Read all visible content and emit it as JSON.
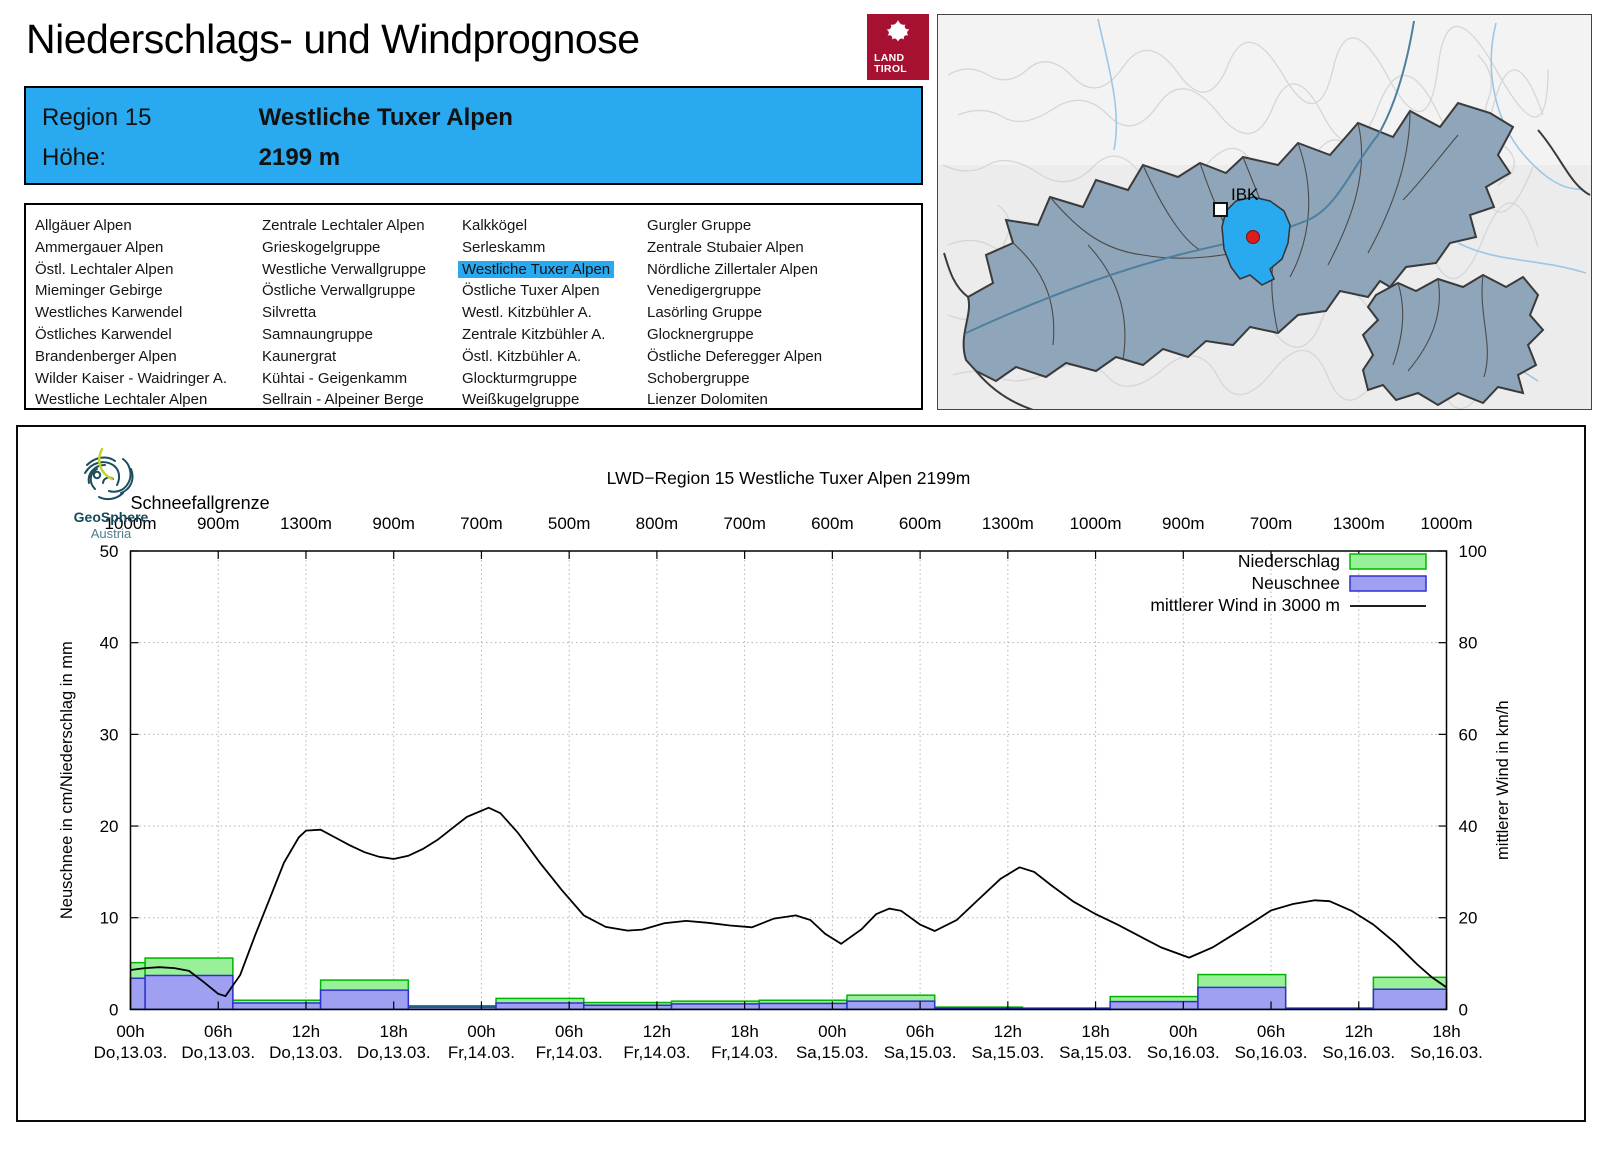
{
  "header": {
    "title": "Niederschlags- und Windprognose",
    "logo_line1": "LAND",
    "logo_line2": "TIROL"
  },
  "region_info": {
    "region_label": "Region 15",
    "region_name": "Westliche Tuxer Alpen",
    "elevation_label": "Höhe:",
    "elevation_value": "2199 m"
  },
  "region_list": {
    "selected": "Westliche Tuxer Alpen",
    "columns": [
      [
        "Allgäuer Alpen",
        "Ammergauer Alpen",
        "Östl. Lechtaler Alpen",
        "Mieminger Gebirge",
        "Westliches Karwendel",
        "Östliches Karwendel",
        "Brandenberger Alpen",
        "Wilder Kaiser - Waidringer A.",
        "Westliche Lechtaler Alpen"
      ],
      [
        "Zentrale Lechtaler Alpen",
        "Grieskogelgruppe",
        "Westliche Verwallgruppe",
        "Östliche Verwallgruppe",
        "Silvretta",
        "Samnaungruppe",
        "Kaunergrat",
        "Kühtai - Geigenkamm",
        "Sellrain - Alpeiner Berge"
      ],
      [
        "Kalkkögel",
        "Serleskamm",
        "Westliche Tuxer Alpen",
        "Östliche Tuxer Alpen",
        "Westl. Kitzbühler A.",
        "Zentrale Kitzbühler A.",
        "Östl. Kitzbühler A.",
        "Glockturmgruppe",
        "Weißkugelgruppe"
      ],
      [
        "Gurgler Gruppe",
        "Zentrale Stubaier Alpen",
        "Nördliche Zillertaler Alpen",
        "Venedigergruppe",
        "Lasörling Gruppe",
        "Glocknergruppe",
        "Östliche Deferegger Alpen",
        "Schobergruppe",
        "Lienzer Dolomiten"
      ]
    ]
  },
  "map": {
    "city_label": "IBK"
  },
  "geosphere": {
    "name": "GeoSphere",
    "country": "Austria"
  },
  "colors": {
    "accent_blue": "#29a9ef",
    "land_tirol_red": "#a61132",
    "map_region_fill": "#8fa5ba",
    "map_highlight": "#29a9ef",
    "location_dot_red": "#dd1c1c"
  },
  "chart_data": {
    "type": "bar+line",
    "title": "LWD−Region 15 Westliche Tuxer Alpen 2199m",
    "snowline_label": "Schneefallgrenze",
    "snowline_values": [
      "1000m",
      "900m",
      "1300m",
      "900m",
      "700m",
      "500m",
      "800m",
      "700m",
      "600m",
      "600m",
      "1300m",
      "1000m",
      "900m",
      "700m",
      "1300m",
      "1000m"
    ],
    "ylabel_left": "Neuschnee in cm/Niederschlag in mm",
    "ylabel_right": "mittlerer Wind in km/h",
    "ylim_left": [
      0,
      50
    ],
    "ylim_right": [
      0,
      100
    ],
    "yticks_left": [
      0,
      10,
      20,
      30,
      40,
      50
    ],
    "yticks_right": [
      0,
      20,
      40,
      60,
      80,
      100
    ],
    "x_hours_total": 90,
    "x_tick_step_h": 6,
    "grid": true,
    "legend_position": "top-right",
    "legend": [
      "Niederschlag",
      "Neuschnee",
      "mittlerer Wind in 3000 m"
    ],
    "x_ticks": [
      {
        "time": "00h",
        "date": "Do,13.03."
      },
      {
        "time": "06h",
        "date": "Do,13.03."
      },
      {
        "time": "12h",
        "date": "Do,13.03."
      },
      {
        "time": "18h",
        "date": "Do,13.03."
      },
      {
        "time": "00h",
        "date": "Fr,14.03."
      },
      {
        "time": "06h",
        "date": "Fr,14.03."
      },
      {
        "time": "12h",
        "date": "Fr,14.03."
      },
      {
        "time": "18h",
        "date": "Fr,14.03."
      },
      {
        "time": "00h",
        "date": "Sa,15.03."
      },
      {
        "time": "06h",
        "date": "Sa,15.03."
      },
      {
        "time": "12h",
        "date": "Sa,15.03."
      },
      {
        "time": "18h",
        "date": "Sa,15.03."
      },
      {
        "time": "00h",
        "date": "So,16.03."
      },
      {
        "time": "06h",
        "date": "So,16.03."
      },
      {
        "time": "12h",
        "date": "So,16.03."
      },
      {
        "time": "18h",
        "date": "So,16.03."
      }
    ],
    "bars": [
      {
        "start_h": 0,
        "end_h": 1,
        "niederschlag_mm": 5.1,
        "neuschnee_cm": 3.4
      },
      {
        "start_h": 1,
        "end_h": 7,
        "niederschlag_mm": 5.6,
        "neuschnee_cm": 3.7
      },
      {
        "start_h": 7,
        "end_h": 13,
        "niederschlag_mm": 1.0,
        "neuschnee_cm": 0.7
      },
      {
        "start_h": 13,
        "end_h": 19,
        "niederschlag_mm": 3.2,
        "neuschnee_cm": 2.1
      },
      {
        "start_h": 19,
        "end_h": 25,
        "niederschlag_mm": 0.4,
        "neuschnee_cm": 0.25
      },
      {
        "start_h": 25,
        "end_h": 31,
        "niederschlag_mm": 1.2,
        "neuschnee_cm": 0.7
      },
      {
        "start_h": 31,
        "end_h": 37,
        "niederschlag_mm": 0.75,
        "neuschnee_cm": 0.45
      },
      {
        "start_h": 37,
        "end_h": 43,
        "niederschlag_mm": 0.9,
        "neuschnee_cm": 0.6
      },
      {
        "start_h": 43,
        "end_h": 49,
        "niederschlag_mm": 1.0,
        "neuschnee_cm": 0.65
      },
      {
        "start_h": 49,
        "end_h": 55,
        "niederschlag_mm": 1.55,
        "neuschnee_cm": 0.9
      },
      {
        "start_h": 55,
        "end_h": 61,
        "niederschlag_mm": 0.25,
        "neuschnee_cm": 0.15
      },
      {
        "start_h": 61,
        "end_h": 67,
        "niederschlag_mm": 0.15,
        "neuschnee_cm": 0.1
      },
      {
        "start_h": 67,
        "end_h": 73,
        "niederschlag_mm": 1.4,
        "neuschnee_cm": 0.85
      },
      {
        "start_h": 73,
        "end_h": 79,
        "niederschlag_mm": 3.8,
        "neuschnee_cm": 2.4
      },
      {
        "start_h": 79,
        "end_h": 85,
        "niederschlag_mm": 0.15,
        "neuschnee_cm": 0.1
      },
      {
        "start_h": 85,
        "end_h": 90,
        "niederschlag_mm": 3.5,
        "neuschnee_cm": 2.2
      }
    ],
    "wind_line_kmh": [
      [
        0,
        8.6
      ],
      [
        1,
        9.0
      ],
      [
        2,
        9.2
      ],
      [
        3,
        9.0
      ],
      [
        4,
        8.4
      ],
      [
        5,
        6.0
      ],
      [
        6,
        3.4
      ],
      [
        6.5,
        2.9
      ],
      [
        7.5,
        7.5
      ],
      [
        8.5,
        16
      ],
      [
        9.5,
        24
      ],
      [
        10.5,
        32
      ],
      [
        11.5,
        37.5
      ],
      [
        12,
        39
      ],
      [
        13,
        39.2
      ],
      [
        14,
        37.5
      ],
      [
        15,
        35.8
      ],
      [
        16,
        34.3
      ],
      [
        17,
        33.3
      ],
      [
        18,
        32.8
      ],
      [
        19,
        33.5
      ],
      [
        20,
        35
      ],
      [
        21,
        37
      ],
      [
        22,
        39.5
      ],
      [
        23,
        42
      ],
      [
        24.5,
        44
      ],
      [
        25.3,
        42.8
      ],
      [
        26.5,
        38.5
      ],
      [
        28,
        32
      ],
      [
        29.5,
        26
      ],
      [
        31,
        20.5
      ],
      [
        32.5,
        18
      ],
      [
        34,
        17.2
      ],
      [
        35,
        17.4
      ],
      [
        36.5,
        18.8
      ],
      [
        38,
        19.3
      ],
      [
        39.5,
        18.9
      ],
      [
        41,
        18.3
      ],
      [
        42.5,
        17.9
      ],
      [
        44,
        19.8
      ],
      [
        45.5,
        20.5
      ],
      [
        46.5,
        19.5
      ],
      [
        47.5,
        16.5
      ],
      [
        48.6,
        14.3
      ],
      [
        50,
        17.5
      ],
      [
        51,
        20.8
      ],
      [
        51.9,
        22
      ],
      [
        52.7,
        21.5
      ],
      [
        54,
        18.5
      ],
      [
        55,
        17.1
      ],
      [
        56.5,
        19.5
      ],
      [
        58,
        24
      ],
      [
        59.5,
        28.5
      ],
      [
        60.8,
        31
      ],
      [
        61.8,
        30
      ],
      [
        63,
        27
      ],
      [
        64.5,
        23.5
      ],
      [
        66,
        20.8
      ],
      [
        67.5,
        18.5
      ],
      [
        69,
        16
      ],
      [
        70.5,
        13.5
      ],
      [
        72.4,
        11.3
      ],
      [
        74,
        13.5
      ],
      [
        75.5,
        16.5
      ],
      [
        77,
        19.5
      ],
      [
        78,
        21.6
      ],
      [
        79.5,
        23
      ],
      [
        81,
        23.8
      ],
      [
        82,
        23.6
      ],
      [
        83.5,
        21.5
      ],
      [
        85,
        18.5
      ],
      [
        86.5,
        14.5
      ],
      [
        88,
        9.8
      ],
      [
        89,
        7
      ],
      [
        90,
        4.8
      ]
    ],
    "colors": {
      "niederschlag_fill": "#98f098",
      "niederschlag_border": "#00b400",
      "neuschnee_fill": "#a0a0f2",
      "neuschnee_border": "#3030d0",
      "wind_line": "#000000",
      "grid": "#b5b5b5"
    }
  }
}
